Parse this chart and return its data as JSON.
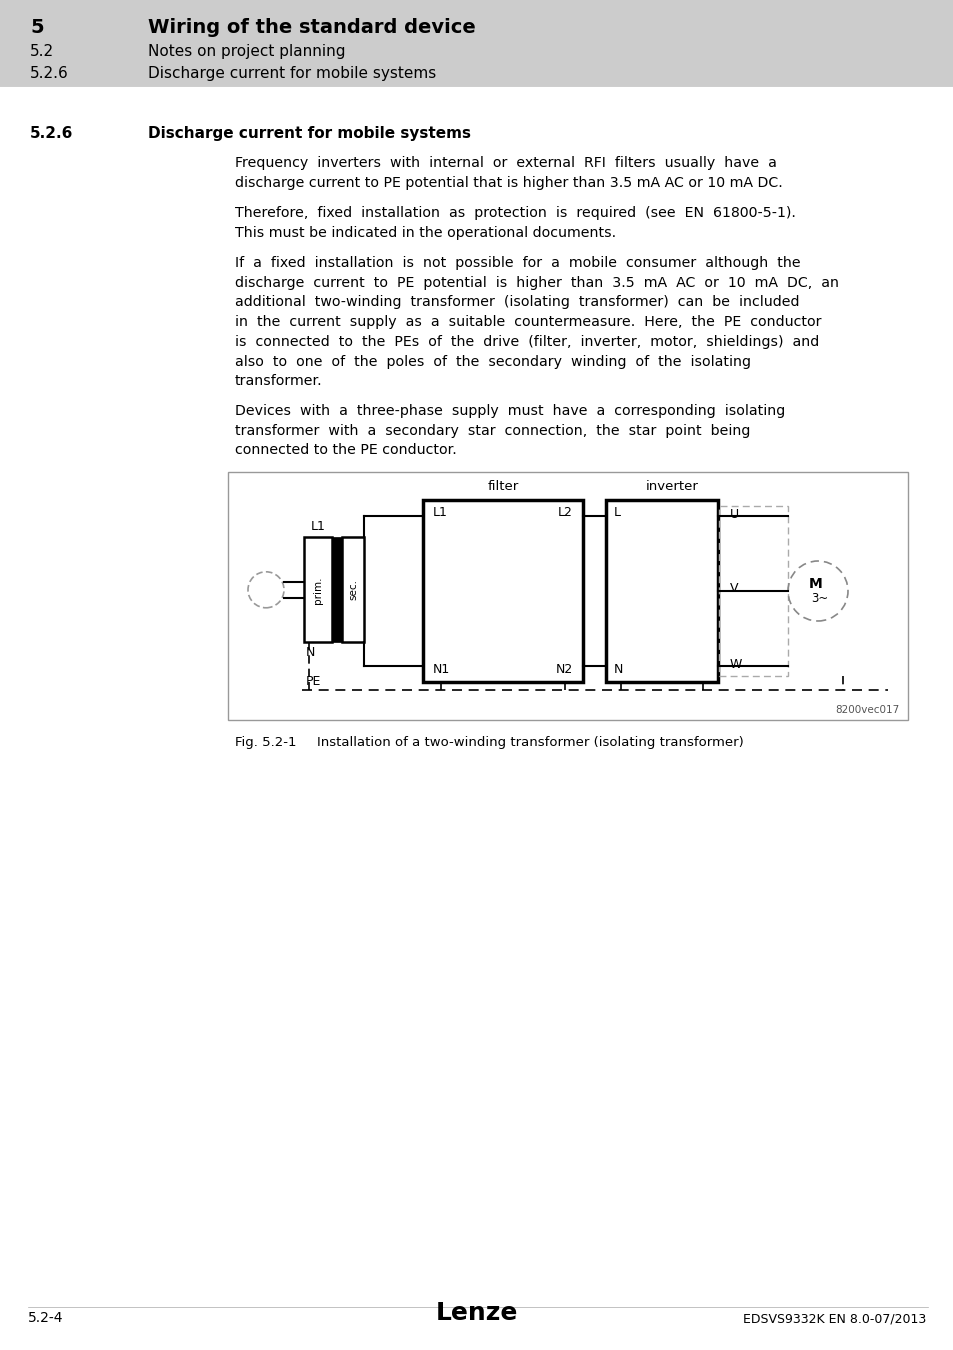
{
  "page_bg": "#ffffff",
  "header_bg": "#cccccc",
  "header_line1_num": "5",
  "header_line1_text": "Wiring of the standard device",
  "header_line2_num": "5.2",
  "header_line2_text": "Notes on project planning",
  "header_line3_num": "5.2.6",
  "header_line3_text": "Discharge current for mobile systems",
  "section_num": "5.2.6",
  "section_title": "Discharge current for mobile systems",
  "fig_watermark": "8200vec017",
  "footer_left": "5.2-4",
  "footer_center": "Lenze",
  "footer_right": "EDSVS9332K EN 8.0-07/2013"
}
